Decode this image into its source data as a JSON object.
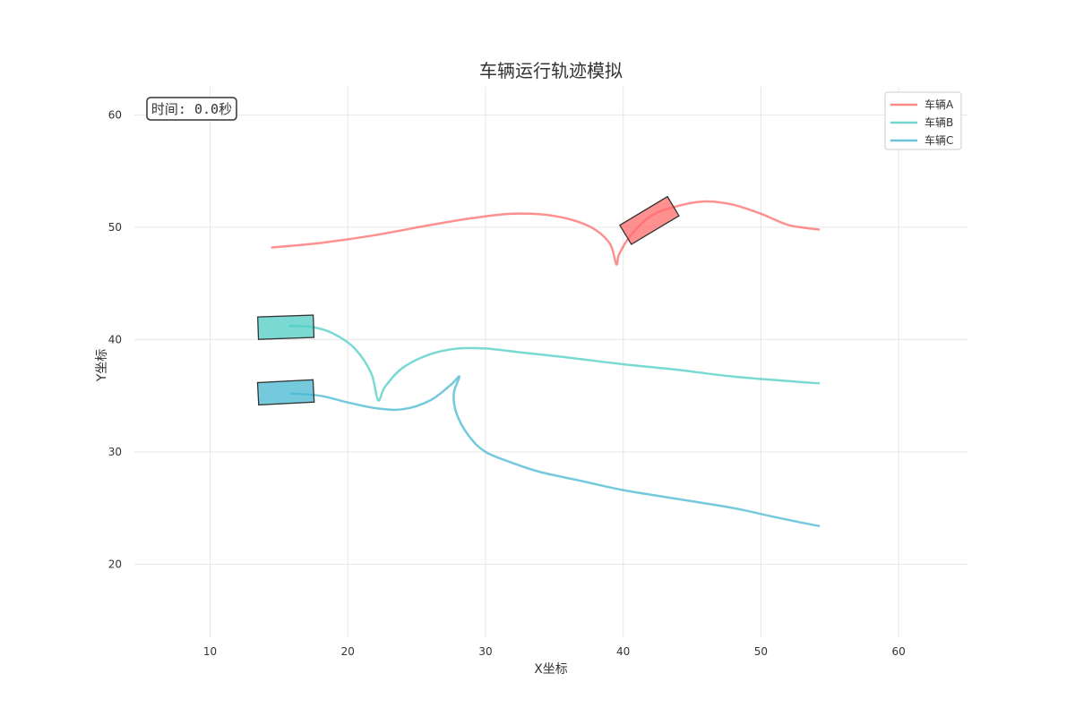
{
  "chart_data": {
    "type": "line",
    "title": "车辆运行轨迹模拟",
    "xlabel": "X坐标",
    "ylabel": "Y坐标",
    "xlim": [
      4.5,
      65
    ],
    "ylim": [
      13.5,
      62.5
    ],
    "x_ticks": [
      10,
      20,
      30,
      40,
      50,
      60
    ],
    "y_ticks": [
      20,
      30,
      40,
      50,
      60
    ],
    "grid": true,
    "legend_position": "top-right",
    "time_label": "时间: 0.0秒",
    "series": [
      {
        "name": "车辆A",
        "color": "#FF6B6B",
        "points": [
          [
            14.5,
            48.2
          ],
          [
            18,
            48.6
          ],
          [
            22,
            49.3
          ],
          [
            26,
            50.2
          ],
          [
            29,
            50.8
          ],
          [
            32,
            51.2
          ],
          [
            35,
            51
          ],
          [
            37.5,
            50.1
          ],
          [
            39,
            48.6
          ],
          [
            39.5,
            46.7
          ],
          [
            39.7,
            47.6
          ],
          [
            40.5,
            49.2
          ],
          [
            42,
            51
          ],
          [
            44,
            51.9
          ],
          [
            46,
            52.3
          ],
          [
            48,
            52
          ],
          [
            50,
            51.2
          ],
          [
            52,
            50.2
          ],
          [
            54.2,
            49.8
          ]
        ],
        "vehicle": {
          "x": 41.9,
          "y": 50.6,
          "angle_deg": 31
        }
      },
      {
        "name": "车辆B",
        "color": "#4ECDC4",
        "points": [
          [
            15.8,
            41.2
          ],
          [
            17.5,
            41.1
          ],
          [
            19,
            40.5
          ],
          [
            20.5,
            39.2
          ],
          [
            21.7,
            37
          ],
          [
            22.2,
            34.6
          ],
          [
            22.7,
            35.8
          ],
          [
            24,
            37.5
          ],
          [
            26,
            38.7
          ],
          [
            28,
            39.2
          ],
          [
            30,
            39.2
          ],
          [
            33,
            38.8
          ],
          [
            36,
            38.4
          ],
          [
            40,
            37.8
          ],
          [
            44,
            37.3
          ],
          [
            48,
            36.7
          ],
          [
            52,
            36.3
          ],
          [
            54.2,
            36.1
          ]
        ],
        "vehicle": {
          "x": 15.5,
          "y": 41.1,
          "angle_deg": 2
        }
      },
      {
        "name": "车辆C",
        "color": "#45B7D1",
        "points": [
          [
            15.9,
            35.2
          ],
          [
            18,
            35
          ],
          [
            20,
            34.4
          ],
          [
            22,
            33.9
          ],
          [
            24,
            33.8
          ],
          [
            26,
            34.6
          ],
          [
            27.5,
            36
          ],
          [
            28.1,
            36.7
          ],
          [
            27.7,
            35.2
          ],
          [
            27.9,
            33.4
          ],
          [
            28.8,
            31.4
          ],
          [
            30,
            30
          ],
          [
            32,
            29
          ],
          [
            34,
            28.2
          ],
          [
            37,
            27.4
          ],
          [
            40,
            26.6
          ],
          [
            44,
            25.8
          ],
          [
            48,
            25
          ],
          [
            51,
            24.2
          ],
          [
            54.2,
            23.4
          ]
        ],
        "vehicle": {
          "x": 15.5,
          "y": 35.3,
          "angle_deg": 3
        }
      }
    ]
  }
}
